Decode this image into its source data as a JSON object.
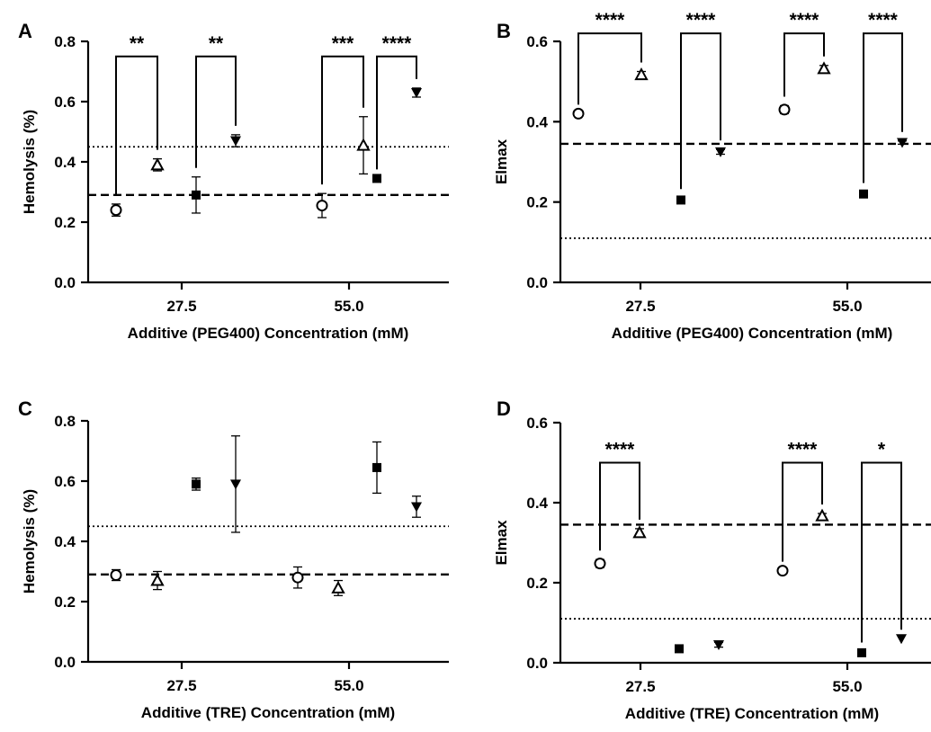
{
  "chart_data": [
    {
      "panel": "A",
      "type": "scatter",
      "xlabel": "Additive (PEG400) Concentration (mM)",
      "ylabel": "Hemolysis (%)",
      "ylim": [
        0.0,
        0.8
      ],
      "yticks": [
        0.0,
        0.2,
        0.4,
        0.6,
        0.8
      ],
      "yticklabels": [
        "0.0",
        "0.2",
        "0.4",
        "0.6",
        "0.8"
      ],
      "categories": [
        "27.5",
        "55.0"
      ],
      "reference_lines": [
        {
          "style": "dotted",
          "y": 0.45
        },
        {
          "style": "dashed",
          "y": 0.29
        }
      ],
      "points": [
        {
          "group": 0,
          "slot": 0,
          "marker": "open-circle",
          "y": 0.24,
          "err": 0.02
        },
        {
          "group": 0,
          "slot": 1,
          "marker": "open-triangle-up",
          "y": 0.39,
          "err": 0.02
        },
        {
          "group": 0,
          "slot": 2,
          "marker": "filled-square",
          "y": 0.29,
          "err": 0.06
        },
        {
          "group": 0,
          "slot": 3,
          "marker": "filled-triangle-down",
          "y": 0.47,
          "err": 0.02
        },
        {
          "group": 1,
          "slot": 0,
          "marker": "open-circle",
          "y": 0.255,
          "err": 0.04
        },
        {
          "group": 1,
          "slot": 1,
          "marker": "open-triangle-up",
          "y": 0.455,
          "err": 0.095
        },
        {
          "group": 1,
          "slot": 2,
          "marker": "filled-square",
          "y": 0.345,
          "err": 0.0
        },
        {
          "group": 1,
          "slot": 3,
          "marker": "filled-triangle-down",
          "y": 0.63,
          "err": 0.015
        }
      ],
      "significance": [
        {
          "group": 0,
          "from": 0,
          "to": 1,
          "label": "**",
          "y": 0.75
        },
        {
          "group": 0,
          "from": 2,
          "to": 3,
          "label": "**",
          "y": 0.75
        },
        {
          "group": 1,
          "from": 0,
          "to": 1,
          "label": "***",
          "y": 0.75
        },
        {
          "group": 1,
          "from": 2,
          "to": 3,
          "label": "****",
          "y": 0.75
        }
      ]
    },
    {
      "panel": "B",
      "type": "scatter",
      "xlabel": "Additive (PEG400) Concentration (mM)",
      "ylabel": "Elmax",
      "ylim": [
        0.0,
        0.6
      ],
      "yticks": [
        0.0,
        0.2,
        0.4,
        0.6
      ],
      "yticklabels": [
        "0.0",
        "0.2",
        "0.4",
        "0.6"
      ],
      "categories": [
        "27.5",
        "55.0"
      ],
      "reference_lines": [
        {
          "style": "dashed",
          "y": 0.345
        },
        {
          "style": "dotted",
          "y": 0.11
        }
      ],
      "points": [
        {
          "group": 0,
          "slot": 0,
          "marker": "open-circle",
          "y": 0.42,
          "err": 0.0
        },
        {
          "group": 0,
          "slot": 1,
          "marker": "open-triangle-up",
          "y": 0.517,
          "err": 0.008
        },
        {
          "group": 0,
          "slot": 2,
          "marker": "filled-square",
          "y": 0.205,
          "err": 0.005
        },
        {
          "group": 0,
          "slot": 3,
          "marker": "filled-triangle-down",
          "y": 0.325,
          "err": 0.006
        },
        {
          "group": 1,
          "slot": 0,
          "marker": "open-circle",
          "y": 0.43,
          "err": 0.01
        },
        {
          "group": 1,
          "slot": 1,
          "marker": "open-triangle-up",
          "y": 0.532,
          "err": 0.008
        },
        {
          "group": 1,
          "slot": 2,
          "marker": "filled-square",
          "y": 0.22,
          "err": 0.005
        },
        {
          "group": 1,
          "slot": 3,
          "marker": "filled-triangle-down",
          "y": 0.348,
          "err": 0.004
        }
      ],
      "significance": [
        {
          "group": 0,
          "from": 0,
          "to": 1,
          "label": "****",
          "y": 0.62
        },
        {
          "group": 0,
          "from": 2,
          "to": 3,
          "label": "****",
          "y": 0.62
        },
        {
          "group": 1,
          "from": 0,
          "to": 1,
          "label": "****",
          "y": 0.62
        },
        {
          "group": 1,
          "from": 2,
          "to": 3,
          "label": "****",
          "y": 0.62
        }
      ]
    },
    {
      "panel": "C",
      "type": "scatter",
      "xlabel": "Additive (TRE) Concentration (mM)",
      "ylabel": "Hemolysis (%)",
      "ylim": [
        0.0,
        0.8
      ],
      "yticks": [
        0.0,
        0.2,
        0.4,
        0.6,
        0.8
      ],
      "yticklabels": [
        "0.0",
        "0.2",
        "0.4",
        "0.6",
        "0.8"
      ],
      "categories": [
        "27.5",
        "55.0"
      ],
      "reference_lines": [
        {
          "style": "dotted",
          "y": 0.45
        },
        {
          "style": "dashed",
          "y": 0.29
        }
      ],
      "points": [
        {
          "group": 0,
          "slot": 0,
          "marker": "open-circle",
          "y": 0.288,
          "err": 0.018
        },
        {
          "group": 0,
          "slot": 1,
          "marker": "open-triangle-up",
          "y": 0.27,
          "err": 0.03
        },
        {
          "group": 0,
          "slot": 2,
          "marker": "filled-square",
          "y": 0.59,
          "err": 0.02
        },
        {
          "group": 0,
          "slot": 3,
          "marker": "filled-triangle-down",
          "y": 0.59,
          "err": 0.16
        },
        {
          "group": 1,
          "slot": 0,
          "marker": "open-circle",
          "y": 0.28,
          "err": 0.035
        },
        {
          "group": 1,
          "slot": 1,
          "marker": "open-triangle-up",
          "y": 0.245,
          "err": 0.025
        },
        {
          "group": 1,
          "slot": 2,
          "marker": "filled-square",
          "y": 0.645,
          "err": 0.085
        },
        {
          "group": 1,
          "slot": 3,
          "marker": "filled-triangle-down",
          "y": 0.515,
          "err": 0.035
        }
      ],
      "significance": []
    },
    {
      "panel": "D",
      "type": "scatter",
      "xlabel": "Additive (TRE) Concentration (mM)",
      "ylabel": "Elmax",
      "ylim": [
        0.0,
        0.6
      ],
      "yticks": [
        0.0,
        0.2,
        0.4,
        0.6
      ],
      "yticklabels": [
        "0.0",
        "0.2",
        "0.4",
        "0.6"
      ],
      "categories": [
        "27.5",
        "55.0"
      ],
      "reference_lines": [
        {
          "style": "dashed",
          "y": 0.345
        },
        {
          "style": "dotted",
          "y": 0.11
        }
      ],
      "points": [
        {
          "group": 0,
          "slot": 0,
          "marker": "open-circle",
          "y": 0.248,
          "err": 0.01
        },
        {
          "group": 0,
          "slot": 1,
          "marker": "open-triangle-up",
          "y": 0.325,
          "err": 0.01
        },
        {
          "group": 0,
          "slot": 2,
          "marker": "filled-square",
          "y": 0.035,
          "err": 0.005
        },
        {
          "group": 0,
          "slot": 3,
          "marker": "filled-triangle-down",
          "y": 0.045,
          "err": 0.006
        },
        {
          "group": 1,
          "slot": 0,
          "marker": "open-circle",
          "y": 0.23,
          "err": 0.0
        },
        {
          "group": 1,
          "slot": 1,
          "marker": "open-triangle-up",
          "y": 0.367,
          "err": 0.006
        },
        {
          "group": 1,
          "slot": 2,
          "marker": "filled-square",
          "y": 0.025,
          "err": 0.003
        },
        {
          "group": 1,
          "slot": 3,
          "marker": "filled-triangle-down",
          "y": 0.06,
          "err": 0.0
        }
      ],
      "significance": [
        {
          "group": 0,
          "from": 0,
          "to": 1,
          "label": "****",
          "y": 0.5
        },
        {
          "group": 1,
          "from": 0,
          "to": 1,
          "label": "****",
          "y": 0.5
        },
        {
          "group": 1,
          "from": 2,
          "to": 3,
          "label": "*",
          "y": 0.5
        }
      ]
    }
  ]
}
